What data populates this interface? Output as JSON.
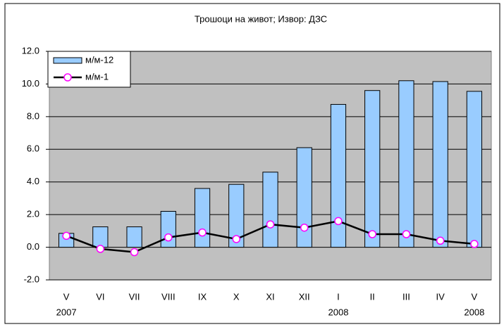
{
  "chart_data": {
    "type": "bar-line",
    "title": "Трошоци на живот; Извор: ДЗС",
    "categories": [
      "V",
      "VI",
      "VII",
      "VIII",
      "IX",
      "X",
      "XI",
      "XII",
      "I",
      "II",
      "III",
      "IV",
      "V"
    ],
    "years": [
      "2007",
      null,
      null,
      null,
      null,
      null,
      null,
      null,
      "2008",
      null,
      null,
      null,
      "2008"
    ],
    "series": [
      {
        "name": "м/м-12",
        "type": "bar",
        "color": "#99ccff",
        "values": [
          0.85,
          1.25,
          1.25,
          2.2,
          3.6,
          3.85,
          4.6,
          6.1,
          8.75,
          9.6,
          10.2,
          10.15,
          9.55
        ]
      },
      {
        "name": "м/м-1",
        "type": "line",
        "color": "#000000",
        "marker_color": "#ff00ff",
        "values": [
          0.7,
          -0.1,
          -0.3,
          0.6,
          0.9,
          0.5,
          1.4,
          1.2,
          1.6,
          0.8,
          0.8,
          0.4,
          0.2
        ]
      }
    ],
    "ylim": [
      -2,
      12
    ],
    "yticks": [
      {
        "value": -2,
        "label": "-2.0"
      },
      {
        "value": 0,
        "label": "0.0"
      },
      {
        "value": 2,
        "label": "2.0"
      },
      {
        "value": 4,
        "label": "4.0"
      },
      {
        "value": 6,
        "label": "6.0"
      },
      {
        "value": 8,
        "label": "8.0"
      },
      {
        "value": 10,
        "label": "10.0"
      },
      {
        "value": 12,
        "label": "12.0"
      }
    ],
    "grid": true,
    "legend": "top-left",
    "plot_background": "#c0c0c0"
  }
}
